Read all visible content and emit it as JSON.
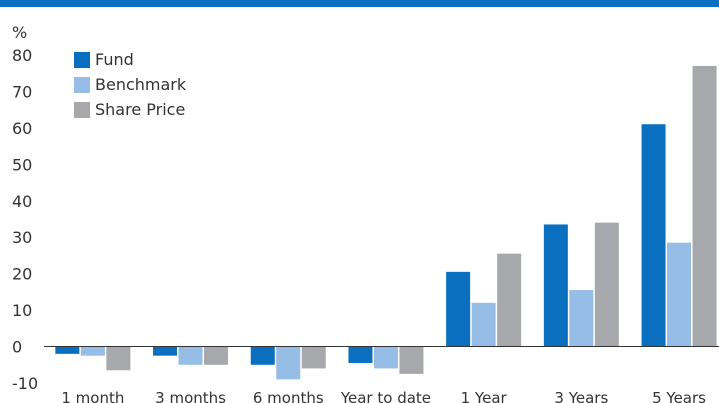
{
  "colors": {
    "header_bar": "#0a6fbf",
    "fund": "#0a6fbf",
    "benchmark": "#95bde6",
    "share_price": "#a7a8ab",
    "axis": "#333333"
  },
  "chart_data": {
    "type": "bar",
    "ylabel": "%",
    "ylim": [
      -10,
      80
    ],
    "yticks": [
      -10,
      0,
      10,
      20,
      30,
      40,
      50,
      60,
      70,
      80
    ],
    "grid": false,
    "legend_position": "top-left",
    "categories": [
      "1 month",
      "3 months",
      "6 months",
      "Year to date",
      "1 Year",
      "3 Years",
      "5 Years"
    ],
    "series": [
      {
        "name": "Fund",
        "color": "#0a6fbf",
        "values": [
          -2.0,
          -2.5,
          -5.0,
          -4.5,
          20.5,
          33.5,
          61.0
        ]
      },
      {
        "name": "Benchmark",
        "color": "#95bde6",
        "values": [
          -2.5,
          -5.0,
          -9.0,
          -6.0,
          12.0,
          15.5,
          28.5
        ]
      },
      {
        "name": "Share Price",
        "color": "#a7a8ab",
        "values": [
          -6.5,
          -5.0,
          -6.0,
          -7.5,
          25.5,
          34.0,
          77.0
        ]
      }
    ]
  }
}
